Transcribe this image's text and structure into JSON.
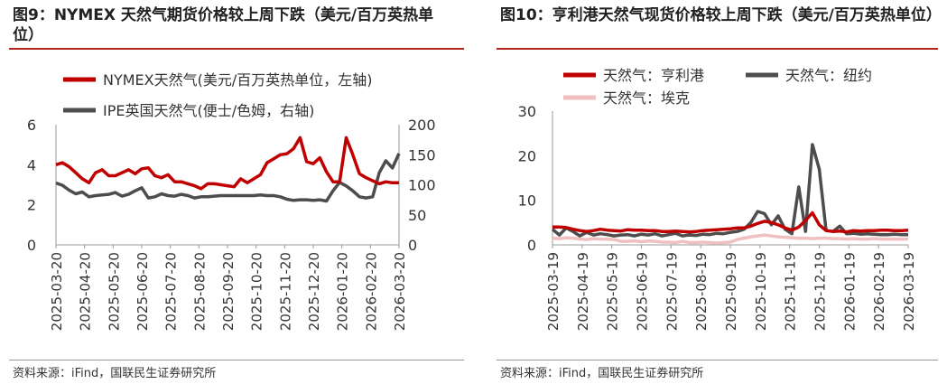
{
  "left": {
    "title": "图9：NYMEX 天然气期货价格较上周下跌（美元/百万英热单位）",
    "source": "资料来源：iFind，国联民生证券研究所",
    "chart_data": {
      "type": "line",
      "dual_axis": true,
      "legend_placement": "top",
      "grid": false,
      "x_ticks": [
        "2025-03-20",
        "2025-04-20",
        "2025-05-20",
        "2025-06-20",
        "2025-07-20",
        "2025-08-20",
        "2025-09-20",
        "2025-10-20",
        "2025-11-20",
        "2025-12-20",
        "2026-01-20",
        "2026-02-20",
        "2026-03-20"
      ],
      "y_left": {
        "ylim": [
          0,
          6
        ],
        "ticks": [
          "0",
          "2",
          "4",
          "6"
        ]
      },
      "y_right": {
        "ylim": [
          0,
          200
        ],
        "ticks": [
          "0",
          "50",
          "100",
          "150",
          "200"
        ]
      },
      "series": [
        {
          "name": "NYMEX天然气(美元/百万英热单位，左轴)",
          "color": "#c00000",
          "axis": "left",
          "values": [
            4.0,
            4.1,
            3.9,
            3.6,
            3.3,
            3.1,
            3.6,
            3.75,
            3.45,
            3.45,
            3.6,
            3.75,
            3.55,
            3.8,
            3.85,
            3.45,
            3.35,
            3.5,
            3.15,
            3.15,
            3.05,
            2.95,
            2.8,
            3.05,
            3.05,
            3.0,
            2.95,
            2.9,
            3.3,
            3.1,
            3.3,
            3.5,
            4.1,
            4.3,
            4.5,
            4.55,
            4.8,
            5.35,
            4.15,
            4.05,
            4.35,
            3.65,
            3.15,
            3.15,
            5.35,
            4.5,
            3.55,
            3.35,
            3.2,
            3.05,
            3.15,
            3.1,
            3.1
          ]
        },
        {
          "name": "IPE英国天然气(便士/色姆，右轴)",
          "color": "#4d4d4d",
          "axis": "right",
          "values": [
            103,
            99,
            91,
            85,
            88,
            80,
            82,
            83,
            84,
            87,
            81,
            84,
            90,
            95,
            78,
            80,
            85,
            82,
            81,
            84,
            82,
            78,
            80,
            80,
            81,
            82,
            82,
            82,
            82,
            82,
            82,
            83,
            82,
            82,
            80,
            76,
            74,
            75,
            75,
            74,
            75,
            73,
            90,
            104,
            98,
            90,
            80,
            78,
            80,
            120,
            140,
            128,
            152
          ]
        }
      ]
    }
  },
  "right": {
    "title": "图10：亨利港天然气现货价格较上周下跌（美元/百万英热单位）",
    "source": "资料来源：iFind，国联民生证券研究所",
    "chart_data": {
      "type": "line",
      "legend_placement": "top",
      "grid": false,
      "x_ticks": [
        "2025-03-19",
        "2025-04-19",
        "2025-05-19",
        "2025-06-19",
        "2025-07-19",
        "2025-08-19",
        "2025-09-19",
        "2025-10-19",
        "2025-11-19",
        "2025-12-19",
        "2026-01-19",
        "2026-02-19",
        "2026-03-19"
      ],
      "ylim": [
        0,
        30
      ],
      "y_ticks": [
        "0",
        "10",
        "20",
        "30"
      ],
      "series": [
        {
          "name": "天然气：亨利港",
          "color": "#c00000",
          "values": [
            4.0,
            4.0,
            3.9,
            3.5,
            3.2,
            3.0,
            3.2,
            3.5,
            3.3,
            3.2,
            3.1,
            3.4,
            3.3,
            3.3,
            3.2,
            3.2,
            3.0,
            3.0,
            3.1,
            3.0,
            2.9,
            3.0,
            3.2,
            3.3,
            3.4,
            3.5,
            3.6,
            3.8,
            3.8,
            4.2,
            4.8,
            5.3,
            5.0,
            4.5,
            3.8,
            3.3,
            4.0,
            5.5,
            7.2,
            4.5,
            3.2,
            3.0,
            3.1,
            2.9,
            3.2,
            3.1,
            3.2,
            3.2,
            3.3,
            3.3,
            3.2,
            3.2,
            3.3
          ]
        },
        {
          "name": "天然气：纽约",
          "color": "#4d4d4d",
          "values": [
            3.5,
            2.2,
            3.8,
            3.0,
            2.0,
            2.8,
            2.2,
            2.5,
            2.3,
            2.0,
            2.2,
            2.3,
            2.0,
            2.4,
            2.2,
            2.5,
            2.0,
            2.3,
            2.6,
            2.0,
            2.2,
            2.1,
            2.4,
            2.3,
            2.6,
            2.5,
            2.8,
            3.0,
            3.5,
            5.0,
            7.5,
            7.0,
            4.5,
            6.5,
            3.5,
            2.5,
            13.0,
            3.0,
            22.5,
            17.0,
            3.2,
            3.0,
            4.2,
            2.5,
            2.6,
            2.4,
            2.5,
            2.4,
            2.3,
            2.3,
            2.4,
            2.3,
            2.3
          ]
        },
        {
          "name": "天然气：埃克",
          "color": "#f0c0c0",
          "values": [
            1.5,
            1.4,
            1.6,
            1.5,
            1.3,
            1.2,
            1.4,
            1.3,
            1.3,
            1.2,
            0.8,
            0.8,
            0.9,
            0.7,
            0.9,
            0.8,
            0.6,
            0.6,
            0.5,
            0.8,
            0.5,
            0.5,
            0.6,
            0.5,
            0.4,
            0.5,
            0.6,
            1.2,
            1.5,
            1.8,
            2.0,
            2.2,
            2.0,
            1.8,
            1.7,
            1.6,
            1.5,
            1.5,
            1.4,
            1.5,
            1.5,
            1.4,
            1.4,
            1.3,
            1.4,
            1.3,
            1.3,
            1.4,
            1.3,
            1.3,
            1.3,
            1.3,
            1.3
          ]
        }
      ]
    }
  }
}
